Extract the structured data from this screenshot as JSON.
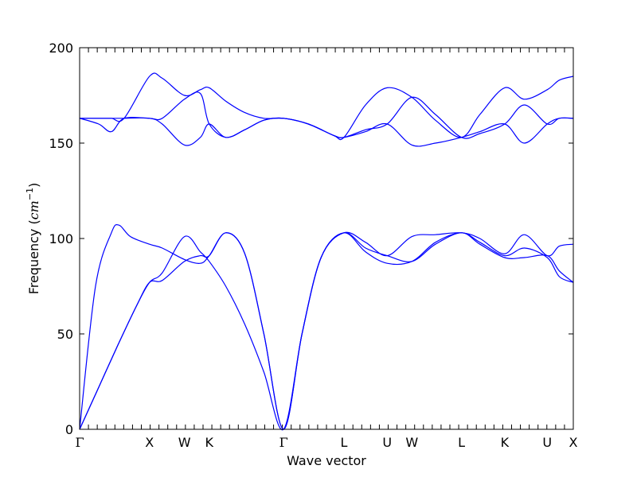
{
  "chart_data": {
    "type": "line",
    "title": "",
    "xlabel": "Wave vector",
    "ylabel_text": "Frequency (",
    "ylabel_unit": "cm",
    "ylabel_exp": "−1",
    "ylabel_close": ")",
    "ylim": [
      0,
      200
    ],
    "yticks": [
      0,
      50,
      100,
      150,
      200
    ],
    "xlim": [
      0,
      7.77
    ],
    "grid": false,
    "legend": "none",
    "line_color": "#0000ff",
    "high_symmetry_points": [
      {
        "label": "Γ",
        "x": 0.0
      },
      {
        "label": "X",
        "x": 1.1
      },
      {
        "label": "W",
        "x": 1.65
      },
      {
        "label": "K",
        "x": 2.04
      },
      {
        "label": "Γ",
        "x": 3.21
      },
      {
        "label": "L",
        "x": 4.16
      },
      {
        "label": "U",
        "x": 4.84
      },
      {
        "label": "W",
        "x": 5.23
      },
      {
        "label": "L",
        "x": 6.01
      },
      {
        "label": "K",
        "x": 6.69
      },
      {
        "label": "U",
        "x": 7.36
      },
      {
        "label": "X",
        "x": 7.77
      }
    ],
    "series": [
      {
        "values": [
          [
            0,
            0
          ],
          [
            0.3,
            22
          ],
          [
            0.6,
            44
          ],
          [
            0.9,
            65
          ],
          [
            1.1,
            77
          ],
          [
            1.3,
            82
          ],
          [
            1.65,
            101
          ],
          [
            1.9,
            93
          ],
          [
            2.04,
            88
          ],
          [
            2.3,
            75
          ],
          [
            2.6,
            55
          ],
          [
            2.9,
            30
          ],
          [
            3.21,
            0
          ],
          [
            3.5,
            50
          ],
          [
            3.8,
            90
          ],
          [
            4.16,
            103
          ],
          [
            4.5,
            93
          ],
          [
            4.84,
            87
          ],
          [
            5.23,
            88
          ],
          [
            5.6,
            98
          ],
          [
            6.01,
            103
          ],
          [
            6.3,
            98
          ],
          [
            6.69,
            91
          ],
          [
            7.0,
            95
          ],
          [
            7.36,
            90
          ],
          [
            7.55,
            80
          ],
          [
            7.77,
            77
          ]
        ]
      },
      {
        "values": [
          [
            0,
            0
          ],
          [
            0.3,
            22
          ],
          [
            0.6,
            44
          ],
          [
            0.9,
            65
          ],
          [
            1.1,
            77
          ],
          [
            1.3,
            78
          ],
          [
            1.65,
            88
          ],
          [
            1.9,
            91
          ],
          [
            2.04,
            91
          ],
          [
            2.3,
            103
          ],
          [
            2.6,
            92
          ],
          [
            2.9,
            50
          ],
          [
            3.21,
            0
          ],
          [
            3.5,
            50
          ],
          [
            3.8,
            90
          ],
          [
            4.16,
            103
          ],
          [
            4.5,
            95
          ],
          [
            4.84,
            91
          ],
          [
            5.23,
            88
          ],
          [
            5.6,
            97
          ],
          [
            6.01,
            103
          ],
          [
            6.3,
            97
          ],
          [
            6.69,
            90
          ],
          [
            7.0,
            90
          ],
          [
            7.36,
            91
          ],
          [
            7.55,
            83
          ],
          [
            7.77,
            77
          ]
        ]
      },
      {
        "values": [
          [
            0,
            0
          ],
          [
            0.25,
            75
          ],
          [
            0.5,
            103
          ],
          [
            0.62,
            107
          ],
          [
            0.8,
            101
          ],
          [
            1.1,
            97
          ],
          [
            1.3,
            95
          ],
          [
            1.65,
            89
          ],
          [
            1.9,
            87
          ],
          [
            2.04,
            91
          ],
          [
            2.3,
            103
          ],
          [
            2.6,
            92
          ],
          [
            2.9,
            50
          ],
          [
            3.21,
            0
          ],
          [
            3.5,
            50
          ],
          [
            3.8,
            90
          ],
          [
            4.16,
            103
          ],
          [
            4.5,
            98
          ],
          [
            4.84,
            91
          ],
          [
            5.23,
            101
          ],
          [
            5.6,
            102
          ],
          [
            6.01,
            103
          ],
          [
            6.3,
            100
          ],
          [
            6.69,
            92
          ],
          [
            7.0,
            102
          ],
          [
            7.36,
            91
          ],
          [
            7.55,
            96
          ],
          [
            7.77,
            97
          ]
        ]
      },
      {
        "values": [
          [
            0,
            163
          ],
          [
            0.3,
            160
          ],
          [
            0.5,
            156
          ],
          [
            0.7,
            163
          ],
          [
            1.1,
            163
          ],
          [
            1.3,
            163
          ],
          [
            1.65,
            173
          ],
          [
            1.9,
            176
          ],
          [
            2.04,
            160
          ],
          [
            2.3,
            153
          ],
          [
            2.6,
            157
          ],
          [
            2.9,
            162
          ],
          [
            3.21,
            163
          ],
          [
            3.6,
            160
          ],
          [
            4.0,
            154
          ],
          [
            4.16,
            153
          ],
          [
            4.5,
            157
          ],
          [
            4.84,
            160
          ],
          [
            5.23,
            174
          ],
          [
            5.6,
            165
          ],
          [
            6.01,
            153
          ],
          [
            6.3,
            155
          ],
          [
            6.69,
            160
          ],
          [
            7.0,
            170
          ],
          [
            7.36,
            160
          ],
          [
            7.55,
            163
          ],
          [
            7.77,
            163
          ]
        ]
      },
      {
        "values": [
          [
            0,
            163
          ],
          [
            0.3,
            163
          ],
          [
            0.5,
            163
          ],
          [
            0.7,
            163
          ],
          [
            1.1,
            163
          ],
          [
            1.3,
            160
          ],
          [
            1.65,
            149
          ],
          [
            1.9,
            153
          ],
          [
            2.04,
            160
          ],
          [
            2.3,
            153
          ],
          [
            2.6,
            157
          ],
          [
            2.9,
            162
          ],
          [
            3.21,
            163
          ],
          [
            3.6,
            160
          ],
          [
            4.0,
            154
          ],
          [
            4.16,
            153
          ],
          [
            4.5,
            156
          ],
          [
            4.84,
            160
          ],
          [
            5.23,
            149
          ],
          [
            5.6,
            150
          ],
          [
            6.01,
            153
          ],
          [
            6.3,
            156
          ],
          [
            6.69,
            160
          ],
          [
            7.0,
            150
          ],
          [
            7.36,
            160
          ],
          [
            7.55,
            163
          ],
          [
            7.77,
            163
          ]
        ]
      },
      {
        "values": [
          [
            0,
            163
          ],
          [
            0.3,
            163
          ],
          [
            0.5,
            163
          ],
          [
            0.7,
            163
          ],
          [
            1.1,
            185
          ],
          [
            1.3,
            184
          ],
          [
            1.65,
            175
          ],
          [
            1.9,
            178
          ],
          [
            2.04,
            179
          ],
          [
            2.3,
            172
          ],
          [
            2.6,
            166
          ],
          [
            2.9,
            163
          ],
          [
            3.21,
            163
          ],
          [
            3.6,
            160
          ],
          [
            4.0,
            154
          ],
          [
            4.16,
            153
          ],
          [
            4.5,
            170
          ],
          [
            4.84,
            179
          ],
          [
            5.23,
            174
          ],
          [
            5.6,
            162
          ],
          [
            6.01,
            153
          ],
          [
            6.3,
            165
          ],
          [
            6.69,
            179
          ],
          [
            7.0,
            173
          ],
          [
            7.36,
            178
          ],
          [
            7.55,
            183
          ],
          [
            7.77,
            185
          ]
        ]
      }
    ]
  }
}
